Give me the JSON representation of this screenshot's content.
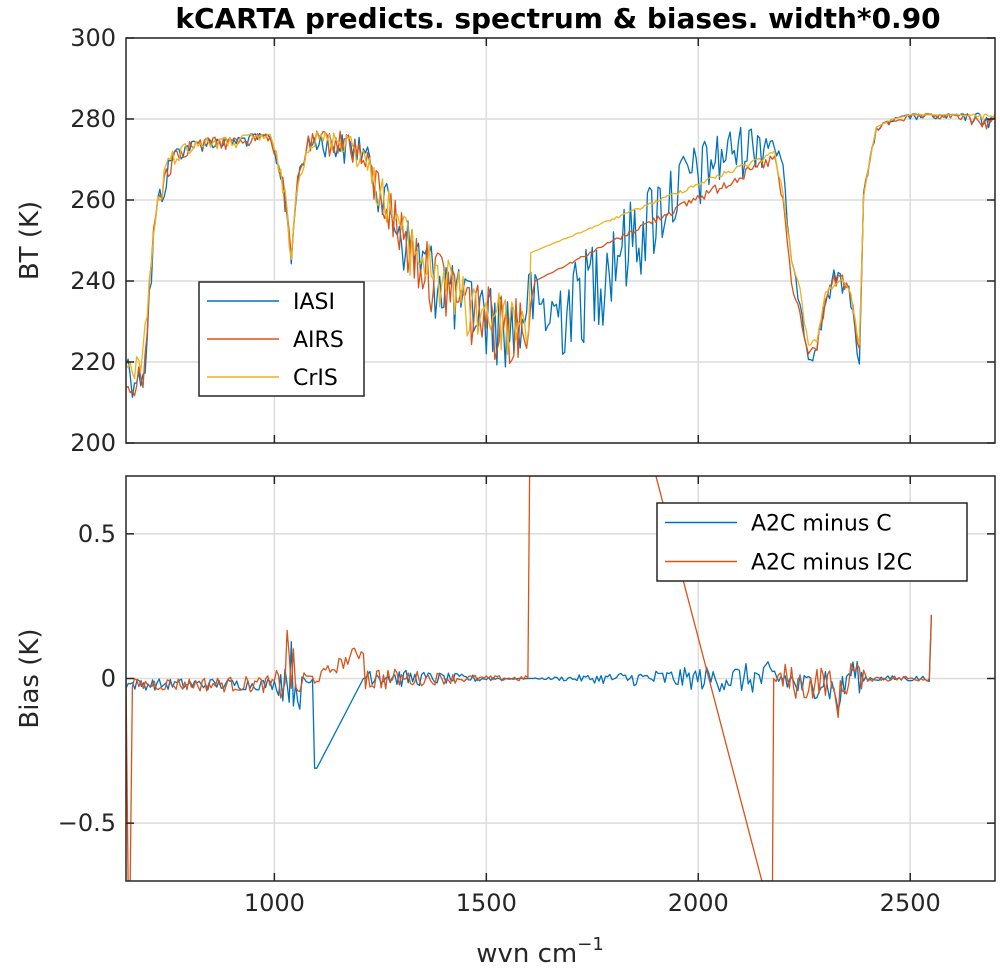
{
  "colors": {
    "blue": "#0072BD",
    "orange": "#D95319",
    "yellow": "#EDB120",
    "grid": "#dcdcdc",
    "axis": "#262626"
  },
  "chart_data": [
    {
      "type": "line",
      "title": "kCARTA predicts. spectrum & biases. width*0.90",
      "ylabel": "BT (K)",
      "xlabel": "",
      "xlim": [
        650,
        2700
      ],
      "ylim": [
        200,
        300
      ],
      "xticks": [
        1000,
        1500,
        2000,
        2500
      ],
      "yticks": [
        200,
        220,
        240,
        260,
        280,
        300
      ],
      "grid": true,
      "legend_position": "left",
      "series": [
        {
          "name": "IASI",
          "color": "#0072BD",
          "x": [
            650,
            665,
            680,
            695,
            705,
            720,
            740,
            760,
            800,
            850,
            900,
            950,
            990,
            1010,
            1025,
            1040,
            1055,
            1080,
            1100,
            1120,
            1160,
            1200,
            1230,
            1260,
            1300,
            1350,
            1400,
            1450,
            1500,
            1550,
            1580,
            1600,
            1620,
            1650,
            1700,
            1750,
            1800,
            1850,
            1900,
            1950,
            2000,
            2050,
            2100,
            2150,
            2180,
            2200,
            2220,
            2240,
            2260,
            2280,
            2300,
            2320,
            2340,
            2360,
            2380,
            2390,
            2420,
            2460,
            2500,
            2540,
            2580,
            2620,
            2660,
            2700
          ],
          "y": [
            222,
            218,
            217,
            221,
            238,
            258,
            266,
            272,
            274,
            275,
            275,
            276,
            276,
            270,
            262,
            246,
            266,
            275,
            276,
            276,
            275,
            275,
            270,
            263,
            255,
            248,
            244,
            238,
            236,
            234,
            232,
            241,
            238,
            235,
            240,
            246,
            252,
            257,
            262,
            267,
            271,
            274,
            276,
            277,
            276,
            268,
            245,
            236,
            222,
            225,
            236,
            242,
            241,
            237,
            222,
            262,
            278,
            280,
            281,
            281,
            281,
            281,
            281,
            280
          ],
          "noise": [
            5,
            5,
            4,
            4,
            6,
            6,
            5,
            3,
            2,
            2,
            2,
            2,
            1,
            3,
            4,
            3,
            2,
            3,
            4,
            4,
            5,
            5,
            6,
            8,
            10,
            11,
            12,
            12,
            12,
            12,
            12,
            10,
            12,
            13,
            14,
            15,
            15,
            14,
            13,
            12,
            11,
            10,
            8,
            7,
            5,
            3,
            2,
            2,
            2,
            3,
            3,
            3,
            3,
            3,
            3,
            2,
            1,
            1,
            1,
            1,
            1,
            1,
            2,
            2
          ]
        },
        {
          "name": "AIRS",
          "color": "#D95319",
          "x": [
            650,
            660,
            675,
            690,
            705,
            720,
            740,
            760,
            800,
            850,
            900,
            950,
            990,
            1010,
            1025,
            1040,
            1055,
            1080,
            1100,
            1140,
            1180,
            1220,
            1260,
            1300,
            1350,
            1400,
            1450,
            1500,
            1550,
            1600,
            1615,
            2180,
            2200,
            2220,
            2240,
            2260,
            2280,
            2300,
            2320,
            2340,
            2360,
            2380,
            2390,
            2420,
            2460,
            2500,
            2540,
            2580,
            2620,
            2660,
            2700
          ],
          "y": [
            218,
            214,
            216,
            220,
            240,
            258,
            267,
            272,
            274,
            275,
            275,
            276,
            276,
            270,
            262,
            246,
            266,
            275,
            276,
            276,
            276,
            270,
            263,
            255,
            248,
            244,
            238,
            236,
            234,
            232,
            240,
            271,
            260,
            240,
            232,
            222,
            225,
            236,
            241,
            241,
            237,
            223,
            262,
            278,
            280,
            281,
            281,
            281,
            281,
            280,
            280
          ],
          "noise": [
            8,
            8,
            6,
            6,
            6,
            6,
            5,
            3,
            2,
            2,
            2,
            2,
            1,
            3,
            4,
            3,
            2,
            3,
            4,
            4,
            5,
            7,
            8,
            10,
            10,
            11,
            11,
            11,
            11,
            8,
            0,
            2,
            2,
            2,
            2,
            2,
            2,
            2,
            2,
            2,
            2,
            2,
            1,
            1,
            1,
            1,
            1,
            1,
            1,
            2,
            2
          ]
        },
        {
          "name": "CrIS",
          "color": "#EDB120",
          "x": [
            650,
            660,
            675,
            690,
            705,
            720,
            740,
            760,
            800,
            850,
            900,
            950,
            990,
            1010,
            1025,
            1040,
            1055,
            1080,
            1100,
            1140,
            1180,
            1220,
            1260,
            1300,
            1350,
            1400,
            1450,
            1500,
            1550,
            1600,
            1605,
            2180,
            2200,
            2220,
            2240,
            2260,
            2280,
            2300,
            2320,
            2340,
            2360,
            2380,
            2390,
            2420,
            2460,
            2500,
            2540,
            2580,
            2620,
            2660,
            2700
          ],
          "y": [
            220,
            219,
            221,
            224,
            240,
            258,
            267,
            272,
            274,
            275,
            275,
            276,
            276,
            270,
            262,
            247,
            266,
            275,
            276,
            276,
            276,
            270,
            263,
            255,
            248,
            244,
            238,
            236,
            234,
            232,
            247,
            272,
            262,
            246,
            238,
            224,
            226,
            237,
            240,
            240,
            237,
            224,
            262,
            278,
            280,
            281,
            281,
            281,
            281,
            281,
            281
          ],
          "noise": [
            4,
            4,
            4,
            4,
            5,
            5,
            4,
            3,
            2,
            2,
            2,
            2,
            1,
            3,
            3,
            3,
            2,
            3,
            3,
            3,
            4,
            5,
            6,
            8,
            9,
            10,
            10,
            10,
            10,
            8,
            0,
            1,
            1,
            1,
            1,
            1,
            1,
            1,
            1,
            1,
            1,
            1,
            1,
            0,
            0,
            0,
            0,
            0,
            0,
            1,
            1
          ]
        }
      ]
    },
    {
      "type": "line",
      "title": "",
      "ylabel": "Bias (K)",
      "xlabel": "wvn cm",
      "xlabel_superscript": "−1",
      "xlim": [
        650,
        2700
      ],
      "ylim": [
        -0.7,
        0.7
      ],
      "xticks": [
        1000,
        1500,
        2000,
        2500
      ],
      "yticks": [
        -0.5,
        0,
        0.5
      ],
      "ytick_labels": [
        "−0.5",
        "0",
        "0.5"
      ],
      "xtick_labels": [
        "1000",
        "1500",
        "2000",
        "2500"
      ],
      "grid": true,
      "legend_position": "top-right",
      "series": [
        {
          "name": "A2C minus C",
          "color": "#0072BD",
          "x": [
            650,
            1000,
            1020,
            1040,
            1060,
            1090,
            1095,
            1100,
            1210,
            1215,
            1220,
            1300,
            1400,
            1500,
            1600,
            2180,
            2200,
            2250,
            2300,
            2330,
            2360,
            2380,
            2400,
            2500,
            2545,
            2550
          ],
          "y": [
            -0.02,
            -0.02,
            0.0,
            0.02,
            -0.05,
            0.0,
            -0.31,
            -0.31,
            0.0,
            0.0,
            0.02,
            0.0,
            0.0,
            0.0,
            0.0,
            0.0,
            0.0,
            -0.03,
            0.0,
            -0.08,
            0.03,
            0.0,
            0.0,
            0.0,
            0.0,
            0.22
          ],
          "noise": [
            0.02,
            0.02,
            0.08,
            0.12,
            0.06,
            0.02,
            0,
            0,
            0,
            0,
            0.04,
            0.03,
            0.02,
            0.01,
            0,
            0.06,
            0.05,
            0.05,
            0.06,
            0.06,
            0.06,
            0.05,
            0.01,
            0.01,
            0.01,
            0
          ]
        },
        {
          "name": "A2C minus I2C",
          "color": "#D95319",
          "x": [
            650,
            655,
            660,
            665,
            1000,
            1020,
            1035,
            1050,
            1070,
            1095,
            1100,
            1210,
            1215,
            1220,
            1300,
            1400,
            1500,
            1598,
            1602,
            1605,
            1900,
            2150,
            2165,
            2175,
            2178,
            2200,
            2250,
            2300,
            2330,
            2360,
            2380,
            2400,
            2500,
            2545,
            2550
          ],
          "y": [
            -0.02,
            -0.7,
            -0.7,
            -0.02,
            -0.02,
            0.0,
            0.1,
            -0.05,
            0.0,
            0.0,
            0.0,
            0.1,
            0.0,
            0.0,
            0.0,
            0.0,
            0.0,
            0.0,
            0.7,
            0.7,
            0.7,
            -0.7,
            -0.7,
            -0.7,
            0.0,
            0.0,
            -0.03,
            0.0,
            -0.08,
            0.03,
            0.0,
            0.0,
            0.0,
            0.0,
            0.22
          ],
          "noise": [
            0.02,
            0,
            0,
            0.02,
            0.03,
            0.1,
            0.15,
            0.08,
            0.03,
            0.02,
            0.02,
            0.03,
            0.04,
            0.05,
            0.03,
            0.02,
            0.01,
            0.01,
            0,
            0,
            0,
            0,
            0,
            0,
            0,
            0.06,
            0.05,
            0.06,
            0.06,
            0.06,
            0.05,
            0.01,
            0.01,
            0.01,
            0
          ]
        }
      ]
    }
  ]
}
